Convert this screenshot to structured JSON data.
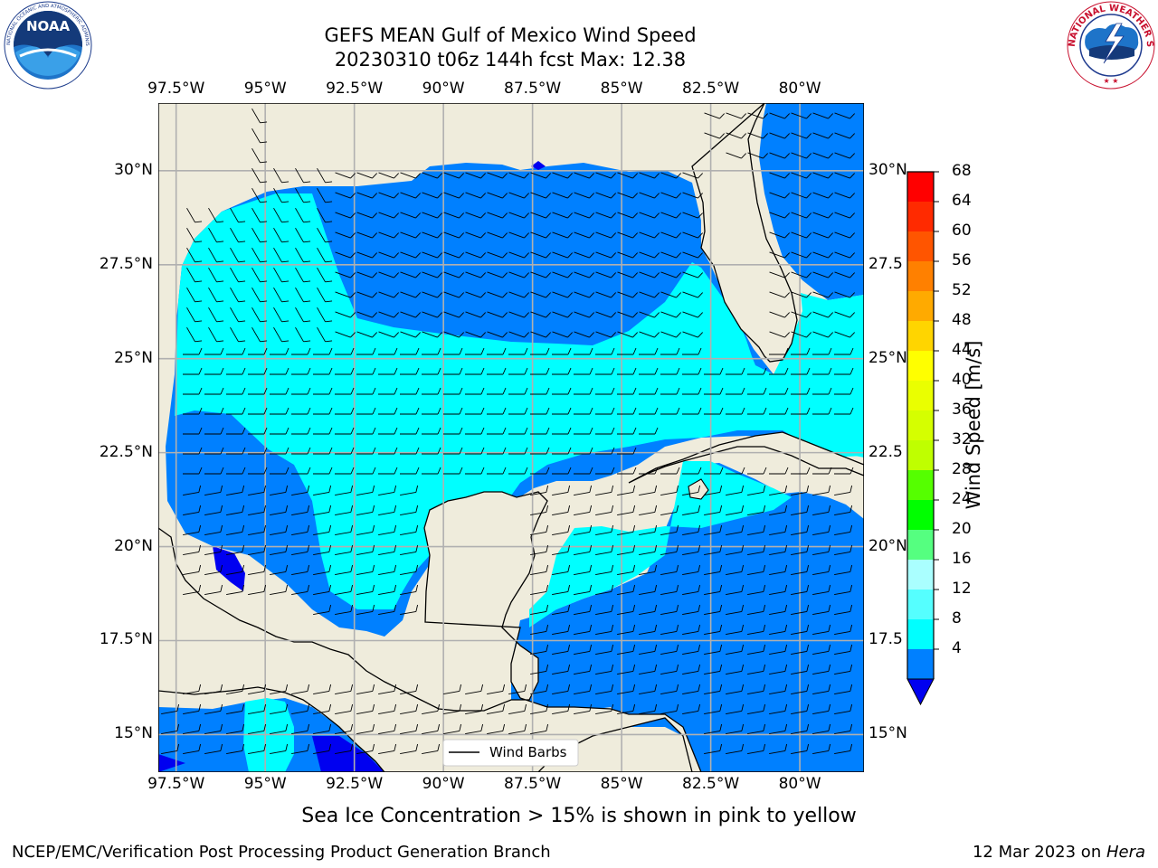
{
  "header": {
    "title_line1": "GEFS MEAN Gulf of Mexico Wind Speed",
    "title_line2": "20230310 t06z 144h fcst   Max: 12.38"
  },
  "logos": {
    "left": {
      "text": "NOAA",
      "ring_text": "NATIONAL OCEANIC AND ATMOSPHERIC ADMINISTRATION · U.S. DEPARTMENT OF COMMERCE"
    },
    "right": {
      "ring_text": "NATIONAL WEATHER SERVICE"
    }
  },
  "map": {
    "lon_labels": [
      "97.5°W",
      "95°W",
      "92.5°W",
      "90°W",
      "87.5°W",
      "85°W",
      "82.5°W",
      "80°W"
    ],
    "lat_labels": [
      "30°N",
      "27.5°N",
      "25°N",
      "22.5°N",
      "20°N",
      "17.5°N",
      "15°N"
    ],
    "lat_labels_right": [
      "30°N",
      "27.5",
      "25°N",
      "22.5",
      "20°N",
      "17.5",
      "15°N"
    ],
    "legend_label": "Wind Barbs",
    "colors": {
      "land": "#efecdc",
      "ocean_low": "#0080ff",
      "ocean_mid": "#00ffff",
      "ocean_min": "#0000f0",
      "grid": "#b0b0b0"
    }
  },
  "colorbar": {
    "label": "Wind Speed [m/s]",
    "ticks": [
      "68",
      "64",
      "60",
      "56",
      "52",
      "48",
      "44",
      "40",
      "36",
      "32",
      "28",
      "24",
      "20",
      "16",
      "12",
      "8",
      "4"
    ],
    "colors_top_to_bottom": [
      "#ff0000",
      "#ff2a00",
      "#ff5500",
      "#ff8000",
      "#ffaa00",
      "#ffd500",
      "#ffff00",
      "#eaff00",
      "#d5ff00",
      "#bfff00",
      "#55ff00",
      "#00ff00",
      "#55ff80",
      "#aaffff",
      "#55ffff",
      "#00ffff",
      "#0080ff"
    ],
    "under_color": "#0000f0"
  },
  "caption": "Sea Ice Concentration > 15% is shown in pink to yellow",
  "footer": {
    "left": "NCEP/EMC/Verification Post Processing Product Generation Branch",
    "right_prefix": "12 Mar 2023 on ",
    "right_machine": "Hera"
  }
}
